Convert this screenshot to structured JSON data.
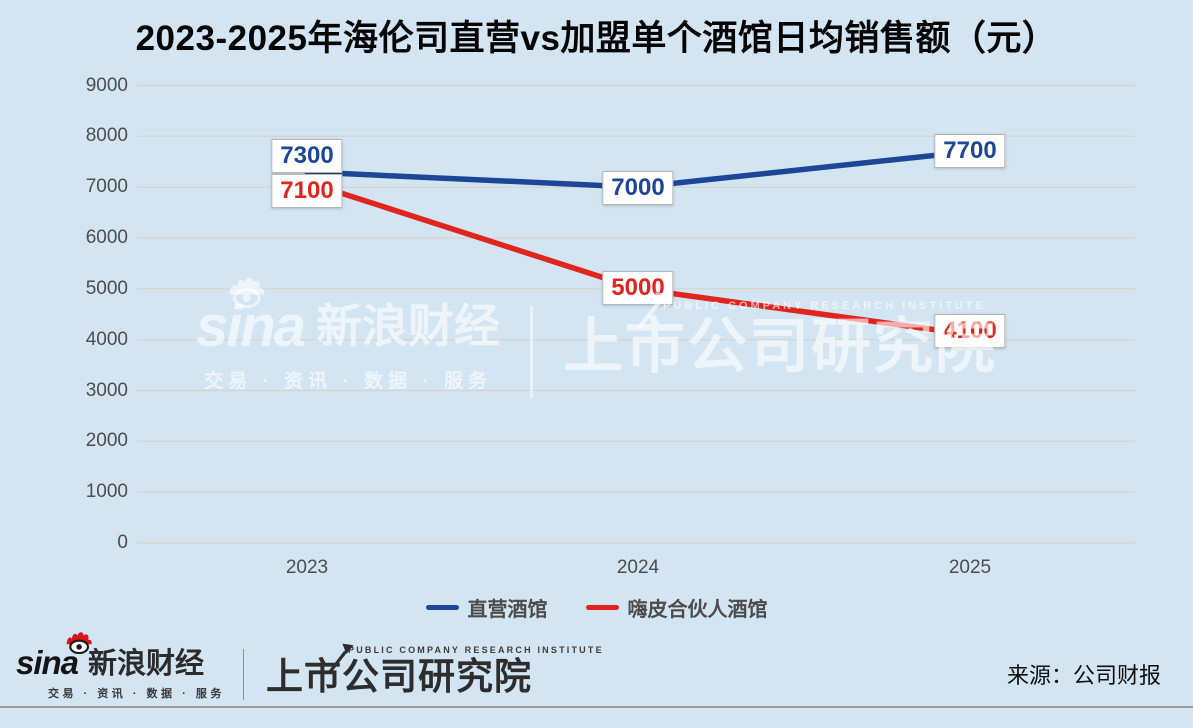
{
  "page": {
    "background": "#d3e5f2"
  },
  "chart_data": {
    "type": "line",
    "title": "2023-2025年海伦司直营vs加盟单个酒馆日均销售额（元）",
    "categories": [
      "2023",
      "2024",
      "2025"
    ],
    "series": [
      {
        "name": "直营酒馆",
        "color": "#1d4796",
        "values": [
          7300,
          7000,
          7700
        ]
      },
      {
        "name": "嗨皮合伙人酒馆",
        "color": "#e0251f",
        "values": [
          7100,
          5000,
          4100
        ]
      }
    ],
    "xlabel": "",
    "ylabel": "",
    "ylim": [
      0,
      9000
    ],
    "ytick_step": 1000,
    "grid": true,
    "gridline_color": "#d8d2ca",
    "legend_position": "bottom",
    "data_labels": true
  },
  "watermark": {
    "sina": "sina",
    "brand": "新浪财经",
    "tagline": "交易 · 资讯 · 数据 · 服务",
    "institute_en": "PUBLIC COMPANY RESEARCH INSTITUTE",
    "institute": "上市公司研究院"
  },
  "footer": {
    "sina": "sina",
    "brand": "新浪财经",
    "tagline": "交易 · 资讯 · 数据 · 服务",
    "institute_en": "PUBLIC COMPANY RESEARCH INSTITUTE",
    "institute": "上市公司研究院",
    "source": "来源：公司财报"
  }
}
